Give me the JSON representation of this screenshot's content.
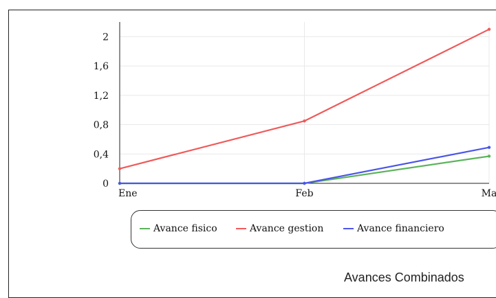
{
  "colors": {
    "Avance fisico": "#5cb35c",
    "Avance gestion": "#ef5a5a",
    "Avance financiero": "#4a55e8",
    "grid": "#e8e8e8",
    "axis": "#222222"
  },
  "chart_data": {
    "type": "line",
    "title": "Avances Combinados",
    "categories": [
      "Ene",
      "Feb",
      "Ma"
    ],
    "ylim": [
      0,
      2.2
    ],
    "yticks": [
      "0",
      "0,4",
      "0,8",
      "1,2",
      "1,6",
      "2"
    ],
    "grid": true,
    "legend_position": "bottom",
    "series": [
      {
        "name": "Avance fisico",
        "values": [
          0,
          0,
          0.37
        ]
      },
      {
        "name": "Avance gestion",
        "values": [
          0.2,
          0.85,
          2.1
        ]
      },
      {
        "name": "Avance financiero",
        "values": [
          0,
          0,
          0.49
        ]
      }
    ]
  }
}
